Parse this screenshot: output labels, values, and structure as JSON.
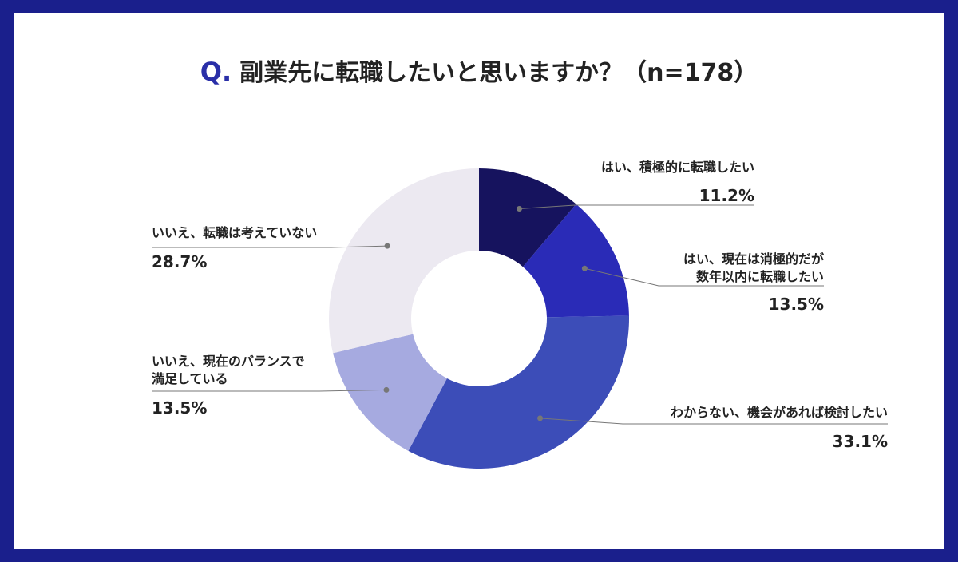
{
  "title": {
    "prefix": "Q.",
    "text": "副業先に転職したいと思いますか？（n=178）"
  },
  "chart_data": {
    "type": "pie",
    "donut": true,
    "slices": [
      {
        "label_lines": [
          "はい、積極的に転職したい"
        ],
        "value": 11.2,
        "display": "11.2%",
        "color": "#16135e"
      },
      {
        "label_lines": [
          "はい、現在は消極的だが",
          "数年以内に転職したい"
        ],
        "value": 13.5,
        "display": "13.5%",
        "color": "#2a2bb7"
      },
      {
        "label_lines": [
          "わからない、機会があれば検討したい"
        ],
        "value": 33.1,
        "display": "33.1%",
        "color": "#3c4db8"
      },
      {
        "label_lines": [
          "いいえ、現在のバランスで",
          "満足している"
        ],
        "value": 13.5,
        "display": "13.5%",
        "color": "#a6aae0"
      },
      {
        "label_lines": [
          "いいえ、転職は考えていない"
        ],
        "value": 28.7,
        "display": "28.7%",
        "color": "#ece9f1"
      }
    ]
  }
}
